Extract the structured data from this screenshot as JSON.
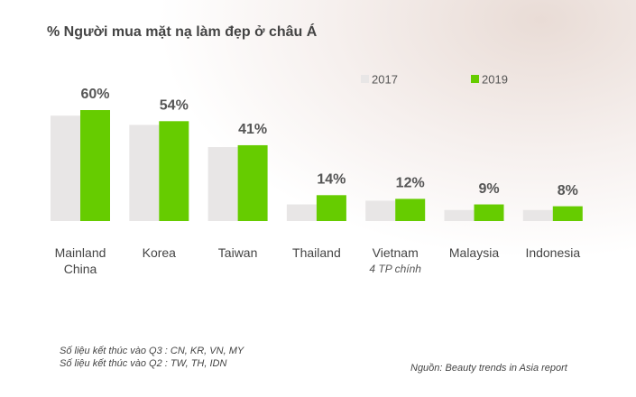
{
  "chart_data": {
    "type": "bar",
    "title": "% Người mua mặt nạ làm đẹp ở châu Á",
    "categories": [
      "Mainland China",
      "Korea",
      "Taiwan",
      "Thailand",
      "Vietnam",
      "Malaysia",
      "Indonesia"
    ],
    "category_notes": [
      null,
      null,
      null,
      null,
      "4 TP chính",
      null,
      null
    ],
    "series": [
      {
        "name": "2017",
        "color": "#e8e6e6",
        "values": [
          57,
          52,
          40,
          9,
          11,
          6,
          6
        ]
      },
      {
        "name": "2019",
        "color": "#66cc00",
        "values": [
          60,
          54,
          41,
          14,
          12,
          9,
          8
        ],
        "value_labels": [
          "60%",
          "54%",
          "41%",
          "14%",
          "12%",
          "9%",
          "8%"
        ]
      }
    ],
    "ylim": [
      0,
      60
    ],
    "notes": [
      "Số liệu kết thúc vào Q3 : CN, KR, VN, MY",
      "Số liệu kết thúc vào Q2 : TW, TH, IDN"
    ],
    "source": "Nguồn: Beauty trends in Asia report"
  }
}
